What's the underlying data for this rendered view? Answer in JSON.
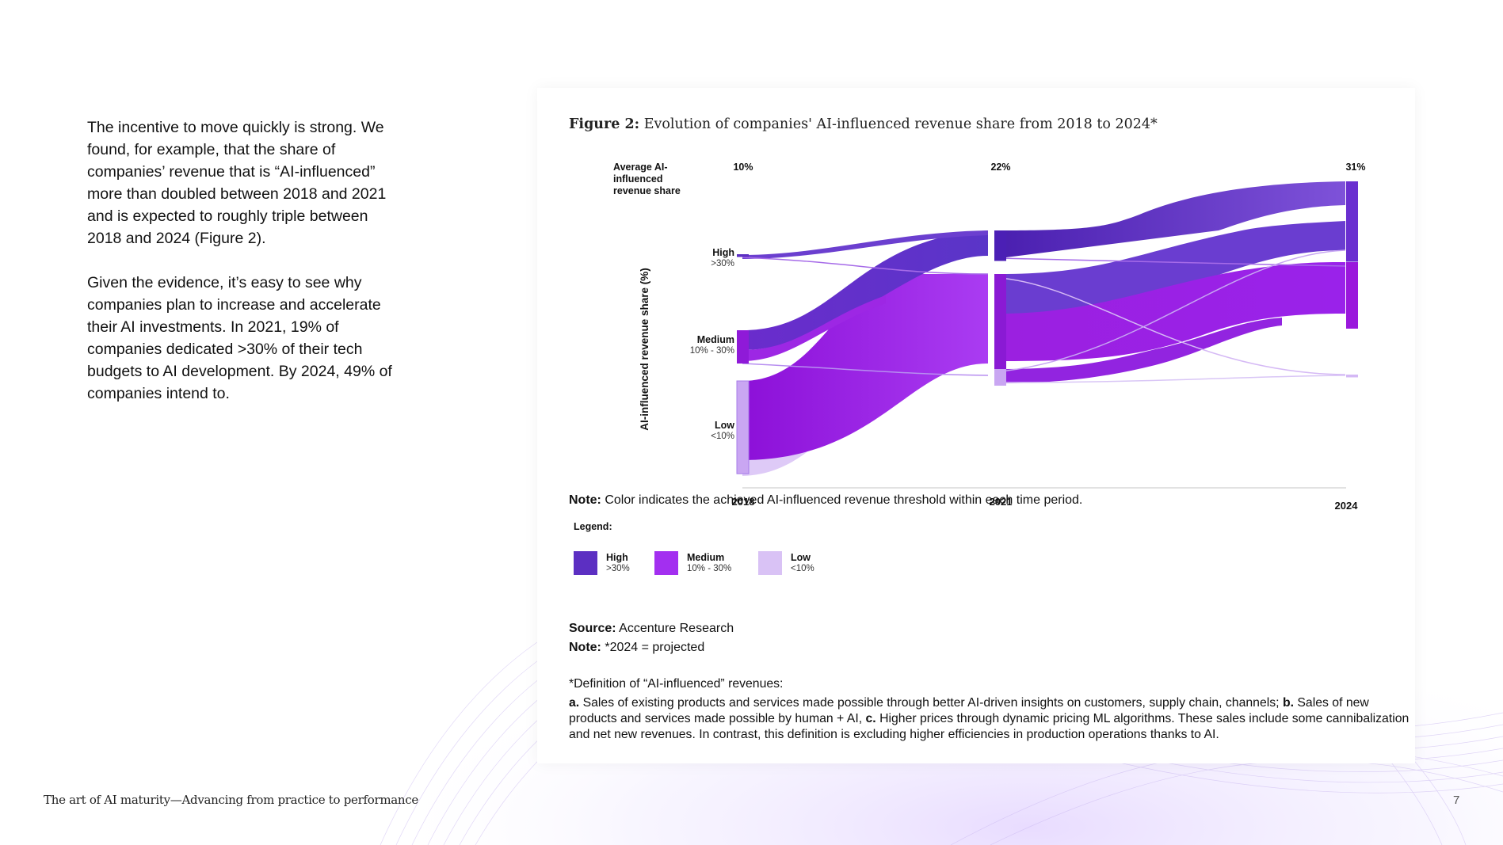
{
  "body": {
    "paragraph1": "The incentive to move quickly is strong. We found, for example, that the share of companies’ revenue that is “AI-influenced” more than doubled between 2018 and 2021 and is expected to roughly triple between 2018 and 2024 (Figure 2).",
    "paragraph2": "Given the evidence, it’s easy to see why companies plan to increase and accelerate their AI investments. In 2021, 19% of companies dedicated >30% of their tech budgets to AI development. By 2024, 49% of companies intend to."
  },
  "figure": {
    "label": "Figure 2:",
    "title": "Evolution of companies' AI-influenced revenue share from 2018 to 2024*"
  },
  "chart_data": {
    "type": "sankey",
    "title": "Evolution of companies' AI-influenced revenue share from 2018 to 2024*",
    "average_label": "Average AI-influenced revenue share",
    "ylabel": "AI-influenced revenue share (%)",
    "years": [
      "2018",
      "2021",
      "2024"
    ],
    "averages": [
      "10%",
      "22%",
      "31%"
    ],
    "averages_numeric": [
      10,
      22,
      31
    ],
    "categories": [
      {
        "name": "High",
        "range": ">30%",
        "color": "#5c2fc2"
      },
      {
        "name": "Medium",
        "range": "10% - 30%",
        "color": "#a32ff0"
      },
      {
        "name": "Low",
        "range": "<10%",
        "color": "#d9c2f5"
      }
    ],
    "node_shares_percent": {
      "2018": {
        "High": 1,
        "Medium": 12,
        "Low": 36
      },
      "2021": {
        "High": 11,
        "Medium": 37,
        "Low": 6
      },
      "2024": {
        "High": 29,
        "Medium": 24,
        "Low": 1
      }
    },
    "legend_title": "Legend:"
  },
  "notes": {
    "note1_label": "Note:",
    "note1_text": "Color indicates the achieved AI-influenced revenue threshold within each time period.",
    "source_label": "Source:",
    "source_text": "Accenture Research",
    "note2_label": "Note:",
    "note2_text": "*2024 = projected"
  },
  "definition": {
    "heading": "*Definition of “AI-influenced” revenues:",
    "a_label": "a.",
    "a_text": "Sales of existing products and services made possible through better AI-driven insights on customers, supply chain, channels;",
    "b_label": "b.",
    "b_text": "Sales of new products and services made possible by human + AI,",
    "c_label": "c.",
    "c_text": "Higher prices through dynamic pricing ML algorithms. These sales include some cannibalization and net new revenues. In contrast, this definition is excluding higher efficiencies in production operations thanks to AI."
  },
  "footer": {
    "title": "The art of AI maturity—Advancing from practice to performance",
    "page_number": "7"
  }
}
